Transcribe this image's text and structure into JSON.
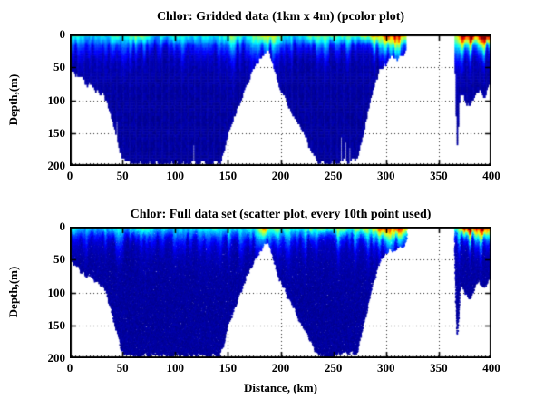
{
  "figure": {
    "background": "#ffffff",
    "axis_color": "#000000",
    "grid_style": "dotted"
  },
  "palette": {
    "deep_blue": "#0000A0",
    "mid_blue": "#0040FF",
    "cyan": "#00E8FF",
    "yellow": "#FFE000",
    "orange": "#FF8000",
    "red": "#E00000",
    "dark_red": "#900000"
  },
  "chart_data": [
    {
      "type": "heatmap",
      "render": "pcolor",
      "seed": 7,
      "title": "Chlor: Gridded data (1km x 4m) (pcolor plot)",
      "xlabel": "",
      "ylabel": "Depth,(m)",
      "xlim": [
        0,
        400
      ],
      "ylim": [
        0,
        200
      ],
      "y_inverted": true,
      "x_ticks": [
        0,
        50,
        100,
        150,
        200,
        250,
        300,
        350,
        400
      ],
      "y_ticks": [
        0,
        50,
        100,
        150,
        200
      ],
      "grid": true,
      "legend": "none",
      "notches": [
        {
          "x": 44,
          "from": 128
        },
        {
          "x": 117,
          "from": 165
        },
        {
          "x": 257,
          "from": 152
        },
        {
          "x": 261,
          "from": 160
        },
        {
          "x": 265,
          "from": 170
        }
      ],
      "surface_boosts": []
    },
    {
      "type": "scatter",
      "render": "scatter",
      "seed": 13,
      "title": "Chlor: Full data set (scatter plot, every 10th point used)",
      "xlabel": "Distance, (km)",
      "ylabel": "Depth,(m)",
      "xlim": [
        0,
        400
      ],
      "ylim": [
        0,
        200
      ],
      "y_inverted": true,
      "x_ticks": [
        0,
        50,
        100,
        150,
        200,
        250,
        300,
        350,
        400
      ],
      "y_ticks": [
        0,
        50,
        100,
        150,
        200
      ],
      "grid": true,
      "legend": "none",
      "notches": [],
      "surface_boosts": [
        {
          "x": 184.5,
          "w": 2.5,
          "v": 0.28
        }
      ]
    }
  ],
  "shared_field": {
    "units": {
      "x": "km",
      "y": "m",
      "value": "chlorophyll (relative, jet colormap 0-1)"
    },
    "gaps": [
      [
        318.6,
        364.8
      ]
    ],
    "deep_value": 0.03,
    "bathymetry": [
      [
        0,
        48
      ],
      [
        5,
        58
      ],
      [
        10,
        66
      ],
      [
        15,
        72
      ],
      [
        20,
        76
      ],
      [
        25,
        82
      ],
      [
        28,
        86
      ],
      [
        31,
        90
      ],
      [
        34,
        98
      ],
      [
        37,
        115
      ],
      [
        40,
        132
      ],
      [
        43,
        150
      ],
      [
        46,
        172
      ],
      [
        49,
        188
      ],
      [
        53,
        192
      ],
      [
        60,
        193
      ],
      [
        70,
        194
      ],
      [
        80,
        194
      ],
      [
        90,
        195
      ],
      [
        100,
        195
      ],
      [
        110,
        194
      ],
      [
        120,
        193
      ],
      [
        130,
        194
      ],
      [
        138,
        193
      ],
      [
        142,
        190
      ],
      [
        145,
        178
      ],
      [
        148,
        158
      ],
      [
        152,
        138
      ],
      [
        156,
        120
      ],
      [
        160,
        104
      ],
      [
        164,
        86
      ],
      [
        168,
        70
      ],
      [
        172,
        56
      ],
      [
        176,
        44
      ],
      [
        180,
        34
      ],
      [
        184,
        27
      ],
      [
        188,
        24
      ],
      [
        191,
        38
      ],
      [
        194,
        55
      ],
      [
        197,
        70
      ],
      [
        200,
        85
      ],
      [
        204,
        98
      ],
      [
        208,
        110
      ],
      [
        212,
        122
      ],
      [
        216,
        134
      ],
      [
        220,
        146
      ],
      [
        224,
        158
      ],
      [
        228,
        172
      ],
      [
        232,
        186
      ],
      [
        236,
        192
      ],
      [
        240,
        194
      ],
      [
        245,
        195
      ],
      [
        250,
        194
      ],
      [
        255,
        192
      ],
      [
        258,
        186
      ],
      [
        261,
        189
      ],
      [
        264,
        190
      ],
      [
        267,
        189
      ],
      [
        270,
        189
      ],
      [
        272,
        188
      ],
      [
        275,
        168
      ],
      [
        278,
        148
      ],
      [
        281,
        128
      ],
      [
        283,
        110
      ],
      [
        285,
        96
      ],
      [
        287,
        84
      ],
      [
        289,
        72
      ],
      [
        291,
        62
      ],
      [
        293,
        54
      ],
      [
        295,
        48
      ],
      [
        298,
        42
      ],
      [
        301,
        38
      ],
      [
        304,
        34
      ],
      [
        307,
        32
      ],
      [
        310,
        34
      ],
      [
        313,
        30
      ],
      [
        316,
        26
      ],
      [
        318,
        22
      ],
      [
        365,
        60
      ],
      [
        366,
        120
      ],
      [
        367,
        165
      ],
      [
        368,
        140
      ],
      [
        369,
        105
      ],
      [
        370,
        92
      ],
      [
        372,
        88
      ],
      [
        374,
        96
      ],
      [
        376,
        102
      ],
      [
        378,
        108
      ],
      [
        380,
        104
      ],
      [
        382,
        96
      ],
      [
        384,
        88
      ],
      [
        386,
        84
      ],
      [
        388,
        82
      ],
      [
        390,
        86
      ],
      [
        392,
        92
      ],
      [
        394,
        88
      ],
      [
        396,
        78
      ],
      [
        398,
        70
      ],
      [
        400,
        66
      ]
    ],
    "surface_chl": [
      [
        0,
        0.3
      ],
      [
        4,
        0.34
      ],
      [
        8,
        0.3
      ],
      [
        12,
        0.26
      ],
      [
        16,
        0.24
      ],
      [
        20,
        0.27
      ],
      [
        24,
        0.25
      ],
      [
        28,
        0.28
      ],
      [
        32,
        0.26
      ],
      [
        36,
        0.3
      ],
      [
        40,
        0.36
      ],
      [
        44,
        0.32
      ],
      [
        48,
        0.3
      ],
      [
        52,
        0.28
      ],
      [
        56,
        0.34
      ],
      [
        60,
        0.4
      ],
      [
        64,
        0.37
      ],
      [
        68,
        0.4
      ],
      [
        72,
        0.34
      ],
      [
        76,
        0.3
      ],
      [
        80,
        0.28
      ],
      [
        84,
        0.26
      ],
      [
        88,
        0.32
      ],
      [
        92,
        0.3
      ],
      [
        96,
        0.27
      ],
      [
        100,
        0.3
      ],
      [
        104,
        0.34
      ],
      [
        108,
        0.3
      ],
      [
        112,
        0.33
      ],
      [
        116,
        0.29
      ],
      [
        120,
        0.26
      ],
      [
        124,
        0.28
      ],
      [
        128,
        0.31
      ],
      [
        132,
        0.28
      ],
      [
        136,
        0.32
      ],
      [
        140,
        0.3
      ],
      [
        144,
        0.34
      ],
      [
        148,
        0.31
      ],
      [
        152,
        0.36
      ],
      [
        156,
        0.32
      ],
      [
        160,
        0.3
      ],
      [
        164,
        0.28
      ],
      [
        168,
        0.32
      ],
      [
        172,
        0.36
      ],
      [
        176,
        0.4
      ],
      [
        180,
        0.44
      ],
      [
        184,
        0.48
      ],
      [
        188,
        0.46
      ],
      [
        192,
        0.44
      ],
      [
        196,
        0.42
      ],
      [
        200,
        0.38
      ],
      [
        204,
        0.34
      ],
      [
        208,
        0.31
      ],
      [
        212,
        0.28
      ],
      [
        216,
        0.3
      ],
      [
        220,
        0.33
      ],
      [
        224,
        0.37
      ],
      [
        228,
        0.41
      ],
      [
        232,
        0.44
      ],
      [
        236,
        0.42
      ],
      [
        240,
        0.45
      ],
      [
        244,
        0.43
      ],
      [
        248,
        0.46
      ],
      [
        252,
        0.42
      ],
      [
        256,
        0.44
      ],
      [
        260,
        0.4
      ],
      [
        264,
        0.36
      ],
      [
        268,
        0.38
      ],
      [
        272,
        0.4
      ],
      [
        276,
        0.43
      ],
      [
        280,
        0.45
      ],
      [
        284,
        0.48
      ],
      [
        288,
        0.53
      ],
      [
        292,
        0.6
      ],
      [
        296,
        0.66
      ],
      [
        300,
        0.71
      ],
      [
        304,
        0.69
      ],
      [
        308,
        0.74
      ],
      [
        312,
        0.71
      ],
      [
        315,
        0.68
      ],
      [
        318,
        0.64
      ],
      [
        365,
        0.44
      ],
      [
        366,
        0.42
      ],
      [
        368,
        0.5
      ],
      [
        370,
        0.62
      ],
      [
        372,
        0.74
      ],
      [
        374,
        0.84
      ],
      [
        376,
        0.88
      ],
      [
        378,
        0.85
      ],
      [
        380,
        0.9
      ],
      [
        382,
        0.82
      ],
      [
        384,
        0.74
      ],
      [
        386,
        0.72
      ],
      [
        388,
        0.8
      ],
      [
        390,
        0.88
      ],
      [
        392,
        0.93
      ],
      [
        394,
        0.96
      ],
      [
        396,
        0.9
      ],
      [
        398,
        0.86
      ],
      [
        400,
        0.88
      ]
    ]
  }
}
